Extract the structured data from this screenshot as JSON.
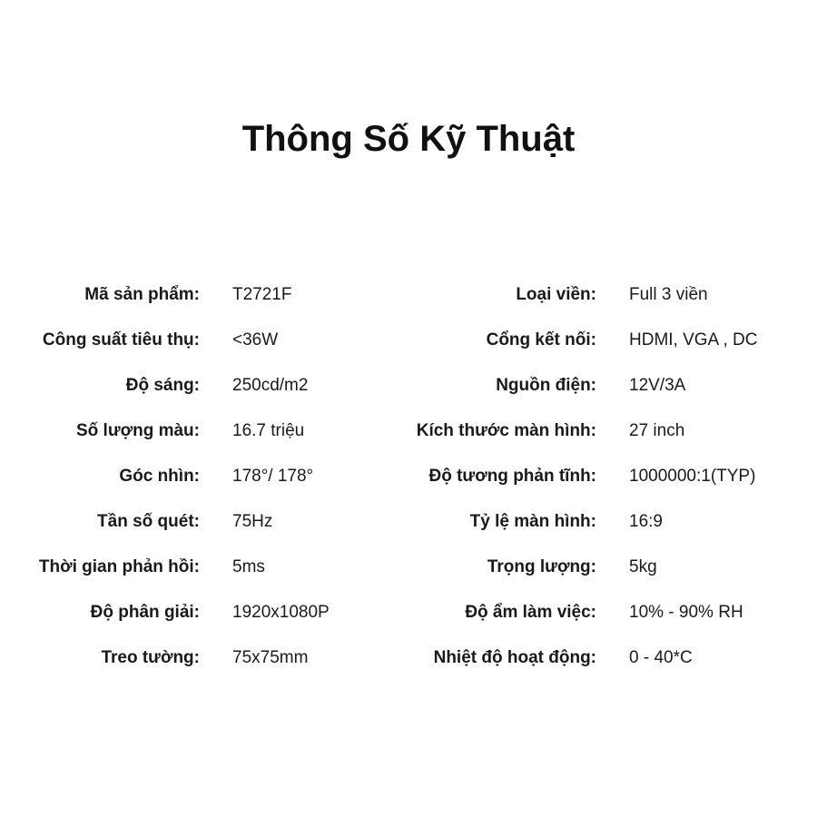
{
  "title": "Thông Số Kỹ Thuật",
  "left": [
    {
      "label": "Mã sản phẩm:",
      "value": "T2721F"
    },
    {
      "label": "Công suất tiêu thụ:",
      "value": "<36W"
    },
    {
      "label": "Độ sáng:",
      "value": "250cd/m2"
    },
    {
      "label": "Số lượng màu:",
      "value": "16.7 triệu"
    },
    {
      "label": "Góc nhìn:",
      "value": "178°/ 178°"
    },
    {
      "label": "Tần số quét:",
      "value": "75Hz"
    },
    {
      "label": "Thời gian phản hồi:",
      "value": "5ms"
    },
    {
      "label": "Độ phân giải:",
      "value": "1920x1080P"
    },
    {
      "label": "Treo tường:",
      "value": "75x75mm"
    }
  ],
  "right": [
    {
      "label": "Loại viền:",
      "value": "Full 3 viền"
    },
    {
      "label": "Cổng kết nối:",
      "value": "HDMI, VGA , DC"
    },
    {
      "label": "Nguồn điện:",
      "value": "12V/3A"
    },
    {
      "label": "Kích thước màn hình:",
      "value": "27 inch"
    },
    {
      "label": "Độ tương phản tĩnh:",
      "value": "1000000:1(TYP)"
    },
    {
      "label": "Tỷ lệ màn hình:",
      "value": "16:9"
    },
    {
      "label": "Trọng lượng:",
      "value": "5kg"
    },
    {
      "label": "Độ ẩm làm việc:",
      "value": "10% - 90% RH"
    },
    {
      "label": "Nhiệt độ hoạt động:",
      "value": "0 - 40*C"
    }
  ]
}
